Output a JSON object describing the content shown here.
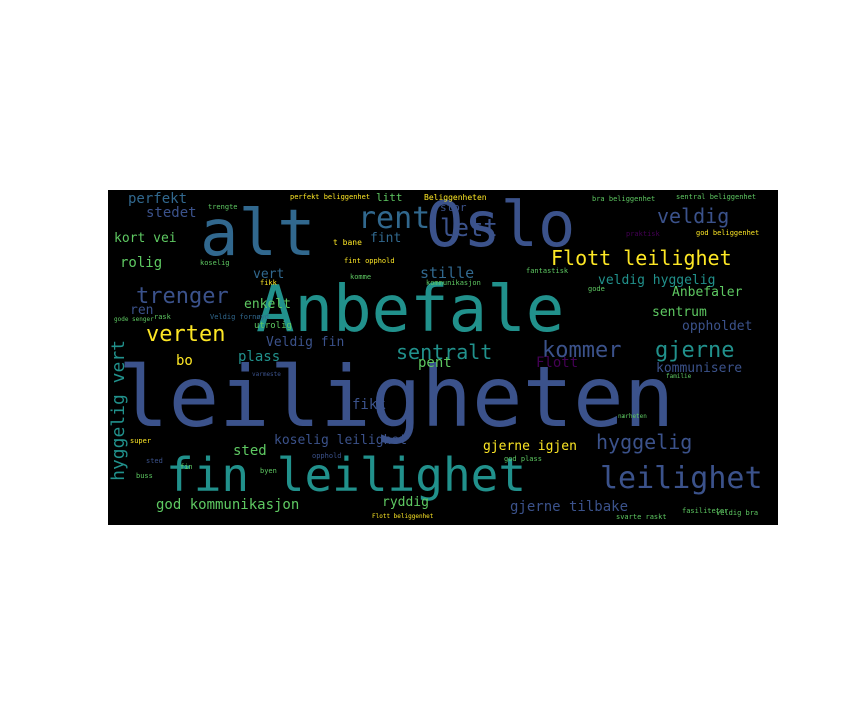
{
  "colors": {
    "background": "#000000",
    "page": "#ffffff",
    "palette": [
      "#3b528b",
      "#21918c",
      "#5ec962",
      "#fde725",
      "#31688e",
      "#440154",
      "#35b779",
      "#2c728e"
    ]
  },
  "words": [
    {
      "text": "leiligheten",
      "color": "#3b528b"
    },
    {
      "text": "Anbefale",
      "color": "#21918c"
    },
    {
      "text": "alt",
      "color": "#31688e"
    },
    {
      "text": "Oslo",
      "color": "#3b528b"
    },
    {
      "text": "fin leilighet",
      "color": "#21918c"
    },
    {
      "text": "leilighet",
      "color": "#3b528b"
    },
    {
      "text": "Flott leilighet",
      "color": "#fde725"
    },
    {
      "text": "rent",
      "color": "#31688e"
    },
    {
      "text": "lett",
      "color": "#3b528b"
    },
    {
      "text": "trenger",
      "color": "#3b528b"
    },
    {
      "text": "verten",
      "color": "#fde725"
    },
    {
      "text": "kommer",
      "color": "#3b528b"
    },
    {
      "text": "gjerne",
      "color": "#21918c"
    },
    {
      "text": "sentralt",
      "color": "#21918c"
    },
    {
      "text": "hyggelig",
      "color": "#3b528b"
    },
    {
      "text": "hyggelig vert",
      "color": "#21918c"
    },
    {
      "text": "veldig",
      "color": "#3b528b"
    },
    {
      "text": "perfekt",
      "color": "#31688e"
    },
    {
      "text": "stedet",
      "color": "#3b528b"
    },
    {
      "text": "kort vei",
      "color": "#5ec962"
    },
    {
      "text": "rolig",
      "color": "#5ec962"
    },
    {
      "text": "stille",
      "color": "#31688e"
    },
    {
      "text": "fint",
      "color": "#31688e"
    },
    {
      "text": "veldig hyggelig",
      "color": "#21918c"
    },
    {
      "text": "Anbefaler",
      "color": "#5ec962"
    },
    {
      "text": "sentrum",
      "color": "#5ec962"
    },
    {
      "text": "oppholdet",
      "color": "#3b528b"
    },
    {
      "text": "kommunisere",
      "color": "#3b528b"
    },
    {
      "text": "Veldig fin",
      "color": "#3b528b"
    },
    {
      "text": "plass",
      "color": "#21918c"
    },
    {
      "text": "bo",
      "color": "#fde725"
    },
    {
      "text": "enkelt",
      "color": "#5ec962"
    },
    {
      "text": "ren",
      "color": "#3b528b"
    },
    {
      "text": "vert",
      "color": "#31688e"
    },
    {
      "text": "pent",
      "color": "#5ec962"
    },
    {
      "text": "Flott",
      "color": "#440154"
    },
    {
      "text": "fikk",
      "color": "#3b528b"
    },
    {
      "text": "sted",
      "color": "#5ec962"
    },
    {
      "text": "koselig leilighet",
      "color": "#3b528b"
    },
    {
      "text": "gjerne igjen",
      "color": "#fde725"
    },
    {
      "text": "god kommunikasjon",
      "color": "#5ec962"
    },
    {
      "text": "ryddig",
      "color": "#5ec962"
    },
    {
      "text": "gjerne tilbake",
      "color": "#3b528b"
    },
    {
      "text": "stor",
      "color": "#3b528b"
    },
    {
      "text": "litt",
      "color": "#5ec962"
    },
    {
      "text": "Beliggenheten",
      "color": "#fde725"
    },
    {
      "text": "perfekt beliggenhet",
      "color": "#fde725"
    },
    {
      "text": "sentral beliggenhet",
      "color": "#5ec962"
    },
    {
      "text": "bra beliggenhet",
      "color": "#5ec962"
    },
    {
      "text": "god beliggenhet",
      "color": "#fde725"
    },
    {
      "text": "t bane",
      "color": "#fde725"
    },
    {
      "text": "fint opphold",
      "color": "#fde725"
    },
    {
      "text": "koselig",
      "color": "#5ec962"
    },
    {
      "text": "trengte",
      "color": "#5ec962"
    },
    {
      "text": "fantastisk",
      "color": "#5ec962"
    },
    {
      "text": "praktisk",
      "color": "#440154"
    },
    {
      "text": "utrolig",
      "color": "#5ec962"
    },
    {
      "text": "super",
      "color": "#fde725"
    },
    {
      "text": "sted",
      "color": "#3b528b"
    },
    {
      "text": "byen",
      "color": "#5ec962"
    },
    {
      "text": "buss",
      "color": "#5ec962"
    },
    {
      "text": "opphold",
      "color": "#3b528b"
    },
    {
      "text": "god plass",
      "color": "#5ec962"
    },
    {
      "text": "fin",
      "color": "#5ec962"
    },
    {
      "text": "veldig bra",
      "color": "#5ec962"
    },
    {
      "text": "svarte raskt",
      "color": "#5ec962"
    },
    {
      "text": "fasiliteter",
      "color": "#5ec962"
    },
    {
      "text": "Flott beliggenhet",
      "color": "#fde725"
    },
    {
      "text": "komme",
      "color": "#5ec962"
    },
    {
      "text": "kommunikasjon",
      "color": "#5ec962"
    },
    {
      "text": "Veldig fornøyd",
      "color": "#31688e"
    },
    {
      "text": "gode senger",
      "color": "#5ec962"
    },
    {
      "text": "rask",
      "color": "#5ec962"
    },
    {
      "text": "familie",
      "color": "#5ec962"
    },
    {
      "text": "nærheten",
      "color": "#5ec962"
    },
    {
      "text": "varmeste",
      "color": "#3b528b"
    },
    {
      "text": "fikk",
      "color": "#fde725"
    },
    {
      "text": "gode",
      "color": "#5ec962"
    }
  ]
}
